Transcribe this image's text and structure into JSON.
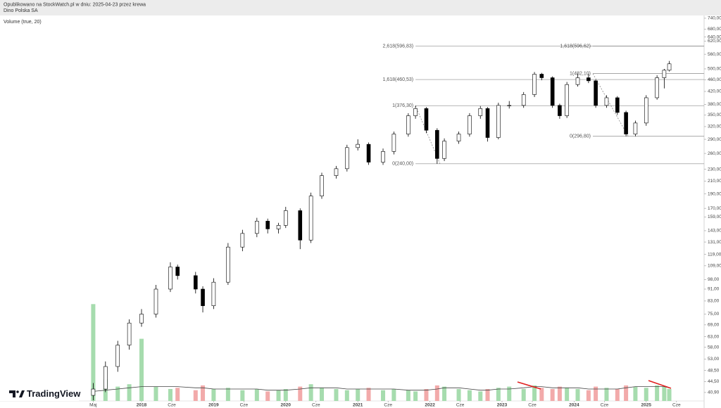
{
  "header": {
    "published": "Opublikowano na StockWatch.pl w dniu: 2025-04-23 przez krewa",
    "symbol": "Dino Polska SA"
  },
  "chart_data": {
    "type": "candlestick",
    "indicator": "Volume (true, 20)",
    "watermark": "TradingView",
    "log_scale": true,
    "xlim": [
      2016.037,
      2025.803
    ],
    "ylim": [
      38.3,
      756
    ],
    "xticks": [
      {
        "value": 2017.33,
        "label": "Maj"
      },
      2018,
      {
        "value": 2018.42,
        "label": "Cze"
      },
      2019,
      {
        "value": 2019.42,
        "label": "Cze"
      },
      2020,
      {
        "value": 2020.42,
        "label": "Cze"
      },
      2021,
      {
        "value": 2021.42,
        "label": "Cze"
      },
      2022,
      {
        "value": 2022.42,
        "label": "Cze"
      },
      2023,
      {
        "value": 2023.42,
        "label": "Cze"
      },
      2024,
      {
        "value": 2024.42,
        "label": "Cze"
      },
      2025,
      {
        "value": 2025.42,
        "label": "Cze"
      }
    ],
    "yticks": [
      {
        "value": 740,
        "label": "740,00"
      },
      {
        "value": 680,
        "label": "680,00"
      },
      {
        "value": 640,
        "label": "640,00"
      },
      {
        "value": 620,
        "label": "620,00"
      },
      {
        "value": 560,
        "label": "560,00"
      },
      {
        "value": 500,
        "label": "500,00"
      },
      {
        "value": 460,
        "label": "460,00"
      },
      {
        "value": 420,
        "label": "420,00"
      },
      {
        "value": 380,
        "label": "380,00"
      },
      {
        "value": 350,
        "label": "350,00"
      },
      {
        "value": 320,
        "label": "320,00"
      },
      {
        "value": 290,
        "label": "290,00"
      },
      {
        "value": 260,
        "label": "260,00"
      },
      {
        "value": 230,
        "label": "230,00"
      },
      {
        "value": 210,
        "label": "210,00"
      },
      {
        "value": 190,
        "label": "190,00"
      },
      {
        "value": 170,
        "label": "170,00"
      },
      {
        "value": 159,
        "label": "159,00"
      },
      {
        "value": 143,
        "label": "143,00"
      },
      {
        "value": 131,
        "label": "131,00"
      },
      {
        "value": 119,
        "label": "119,00"
      },
      {
        "value": 109,
        "label": "109,00"
      },
      {
        "value": 98,
        "label": "98,00"
      },
      {
        "value": 91,
        "label": "91,00"
      },
      {
        "value": 83,
        "label": "83,00"
      },
      {
        "value": 75,
        "label": "75,00"
      },
      {
        "value": 69,
        "label": "69,00"
      },
      {
        "value": 63,
        "label": "63,00"
      },
      {
        "value": 58,
        "label": "58,00"
      },
      {
        "value": 53,
        "label": "53,00"
      },
      {
        "value": 48.5,
        "label": "48,50"
      },
      {
        "value": 44.5,
        "label": "44,50"
      },
      {
        "value": 40.9,
        "label": "40,90"
      }
    ],
    "x": [
      2017.33,
      2017.5,
      2017.67,
      2017.83,
      2018.0,
      2018.2,
      2018.4,
      2018.5,
      2018.75,
      2018.85,
      2019.0,
      2019.2,
      2019.4,
      2019.6,
      2019.75,
      2019.9,
      2020.0,
      2020.2,
      2020.35,
      2020.5,
      2020.7,
      2020.85,
      2021.0,
      2021.15,
      2021.35,
      2021.5,
      2021.7,
      2021.8,
      2021.95,
      2022.1,
      2022.2,
      2022.4,
      2022.55,
      2022.7,
      2022.8,
      2022.95,
      2023.1,
      2023.3,
      2023.45,
      2023.55,
      2023.7,
      2023.8,
      2023.9,
      2024.05,
      2024.2,
      2024.3,
      2024.45,
      2024.6,
      2024.72,
      2024.85,
      2025.0,
      2025.15,
      2025.25,
      2025.32
    ],
    "open": [
      40,
      42,
      50,
      59,
      70,
      75,
      91,
      108,
      101,
      91,
      80,
      96,
      126,
      140,
      154,
      145,
      149,
      167,
      133,
      187,
      219,
      231,
      272,
      279,
      243,
      264,
      302,
      348,
      368,
      311,
      250,
      286,
      302,
      348,
      368,
      294,
      377,
      377,
      410,
      480,
      467,
      377,
      348,
      443,
      467,
      456,
      377,
      400,
      357,
      302,
      329,
      400,
      467,
      495
    ],
    "high": [
      44,
      52,
      61,
      72,
      78,
      94,
      112,
      110,
      104,
      93,
      99,
      130,
      144,
      158,
      157,
      152,
      172,
      170,
      192,
      224,
      236,
      278,
      290,
      283,
      270,
      308,
      355,
      376,
      372,
      316,
      292,
      308,
      355,
      375,
      372,
      385,
      390,
      418,
      488,
      485,
      472,
      382,
      452,
      482,
      482,
      460,
      408,
      405,
      362,
      335,
      408,
      476,
      500,
      532
    ],
    "low": [
      38.5,
      41,
      48,
      57,
      68,
      73,
      89,
      98,
      88,
      76,
      78,
      94,
      122,
      136,
      140,
      140,
      146,
      124,
      130,
      183,
      214,
      226,
      266,
      238,
      238,
      258,
      296,
      340,
      304,
      240,
      245,
      280,
      296,
      340,
      285,
      290,
      368,
      370,
      402,
      458,
      370,
      340,
      342,
      436,
      448,
      370,
      370,
      350,
      297,
      297,
      322,
      394,
      430,
      490
    ],
    "close": [
      42,
      50,
      59,
      70,
      75,
      91,
      108,
      101,
      91,
      80,
      96,
      126,
      140,
      154,
      145,
      149,
      167,
      133,
      187,
      219,
      231,
      272,
      279,
      243,
      264,
      302,
      348,
      368,
      311,
      250,
      286,
      302,
      348,
      368,
      294,
      377,
      377,
      410,
      480,
      467,
      377,
      348,
      443,
      467,
      456,
      377,
      400,
      357,
      302,
      329,
      400,
      467,
      495,
      520
    ],
    "up_color": "#ffffff",
    "down_color": "#000000",
    "volume": {
      "ylim": [
        0,
        100
      ],
      "up_color": "#a6dcae",
      "down_color": "#f2aaaa",
      "ma_color": "#444444",
      "values": [
        81,
        18,
        12,
        14,
        52,
        12,
        10,
        11,
        9,
        13,
        10,
        11,
        9,
        10,
        8,
        9,
        10,
        12,
        14,
        11,
        10,
        9,
        10,
        11,
        9,
        10,
        9,
        8,
        10,
        13,
        12,
        10,
        9,
        8,
        10,
        11,
        12,
        10,
        13,
        11,
        10,
        12,
        11,
        10,
        9,
        12,
        11,
        10,
        13,
        12,
        11,
        13,
        12,
        10
      ],
      "ma_values": [
        8,
        9,
        10,
        11,
        12,
        12,
        12,
        12,
        11,
        11,
        10,
        10,
        10,
        10,
        9,
        9,
        9,
        10,
        11,
        11,
        11,
        10,
        10,
        10,
        10,
        10,
        9,
        9,
        9,
        10,
        11,
        11,
        10,
        9,
        9,
        10,
        10,
        11,
        12,
        12,
        11,
        11,
        11,
        11,
        10,
        10,
        10,
        10,
        11,
        12,
        12,
        12,
        12,
        11
      ]
    },
    "fibonacci": [
      {
        "x": [
          2021.8,
          2022.14
        ],
        "levels": [
          {
            "value": 240,
            "label": "0(240,00)"
          },
          {
            "value": 376.3,
            "label": "1(376,30)"
          },
          {
            "value": 460.53,
            "label": "1,618(460,53)"
          },
          {
            "value": 596.83,
            "label": "2,618(596,83)"
          }
        ]
      },
      {
        "x": [
          2024.26,
          2024.75
        ],
        "levels": [
          {
            "value": 296.8,
            "label": "0(296,80)"
          },
          {
            "value": 482.1,
            "label": "1(482,10)"
          },
          {
            "value": 596.62,
            "label": "1,618(596,62)"
          }
        ]
      }
    ]
  }
}
